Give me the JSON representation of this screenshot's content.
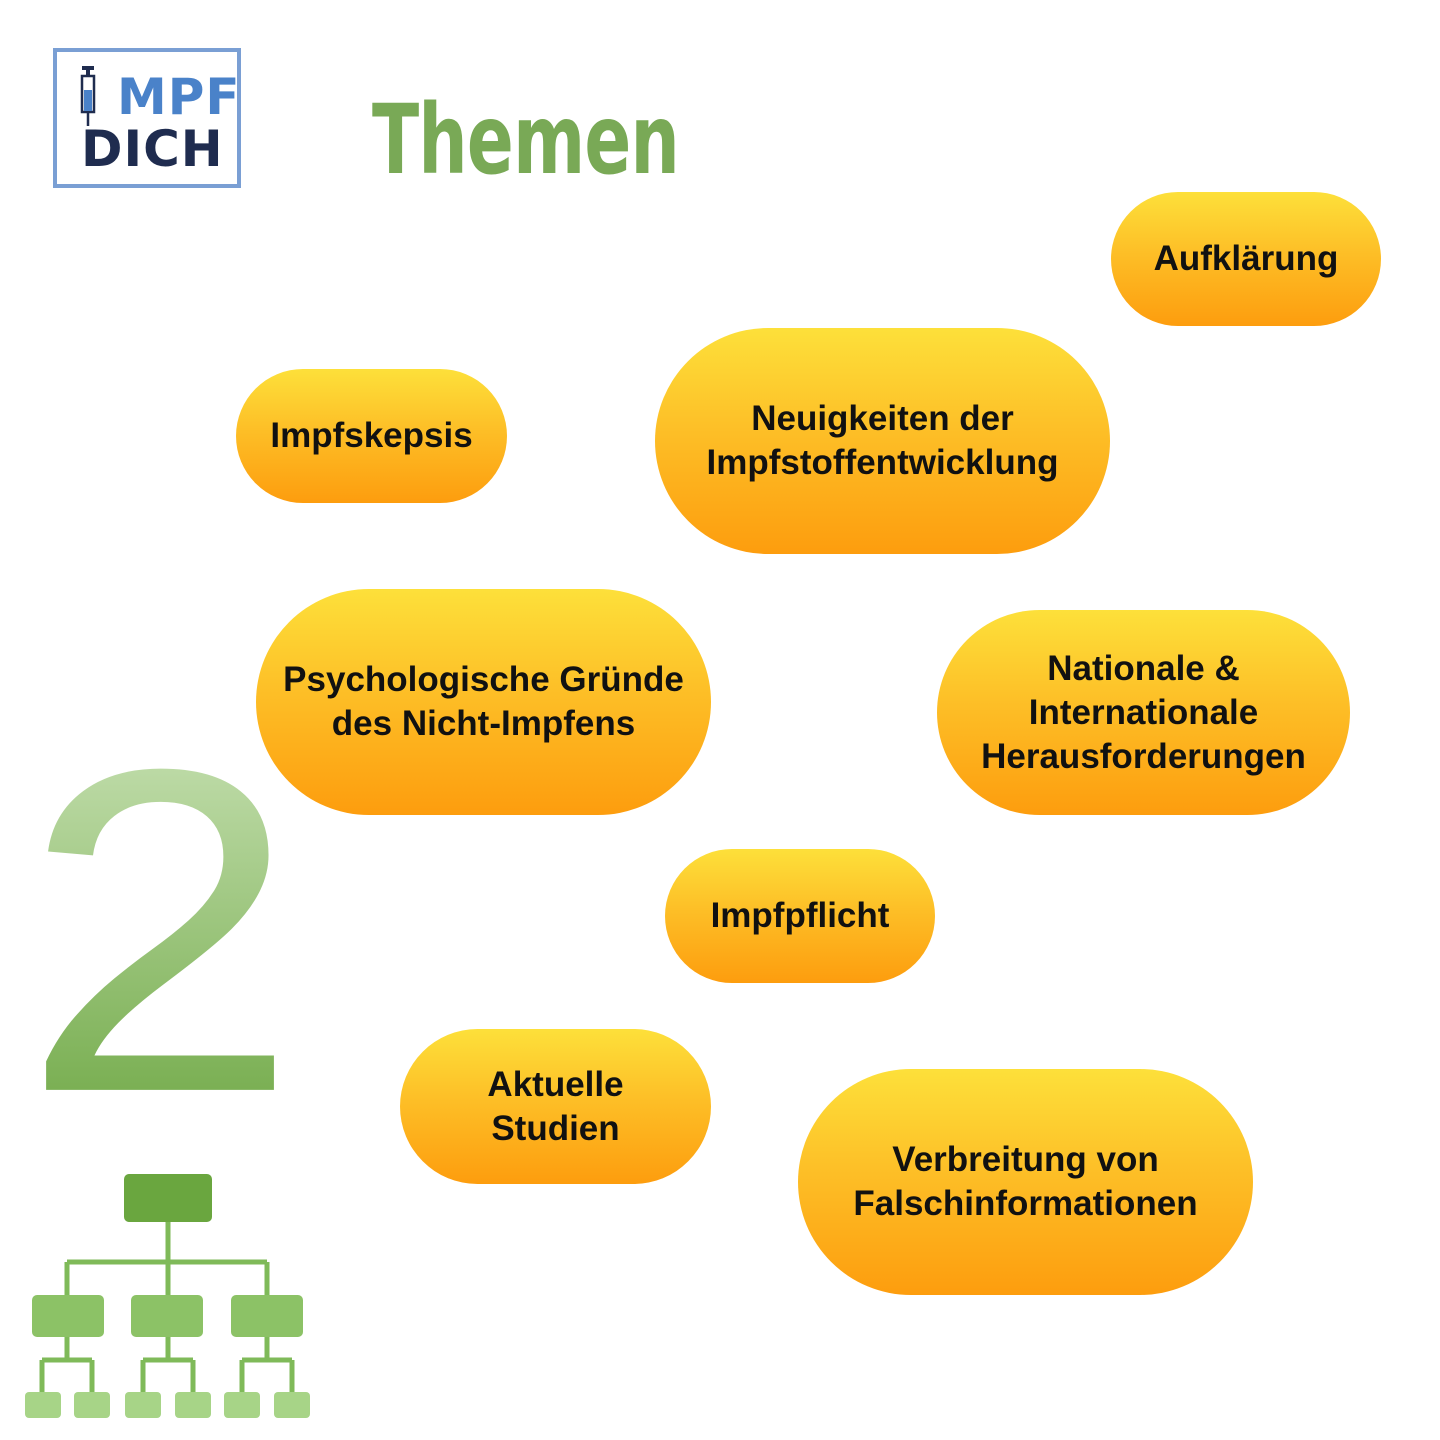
{
  "logo": {
    "line1": "MPF",
    "line2": "DICH"
  },
  "title": "Themen",
  "big_number": "2",
  "topics": [
    {
      "id": "aufklaerung",
      "label": "Aufklärung"
    },
    {
      "id": "impfskepsis",
      "label": "Impfskepsis"
    },
    {
      "id": "neuigkeiten",
      "label": "Neuigkeiten der\nImpfstoffentwicklung"
    },
    {
      "id": "psychologische",
      "label": "Psychologische Gründe\ndes Nicht-Impfens"
    },
    {
      "id": "nationale",
      "label": "Nationale &\nInternationale\nHerausforderungen"
    },
    {
      "id": "impfpflicht",
      "label": "Impfpflicht"
    },
    {
      "id": "aktuelle",
      "label": "Aktuelle\nStudien"
    },
    {
      "id": "verbreitung",
      "label": "Verbreitung von\nFalschinformationen"
    }
  ],
  "colors": {
    "title_green": "#79a956",
    "pill_top": "#fde03a",
    "pill_bottom": "#fd9d0e",
    "logo_blue": "#4a82c9",
    "logo_navy": "#1f2c4f"
  }
}
